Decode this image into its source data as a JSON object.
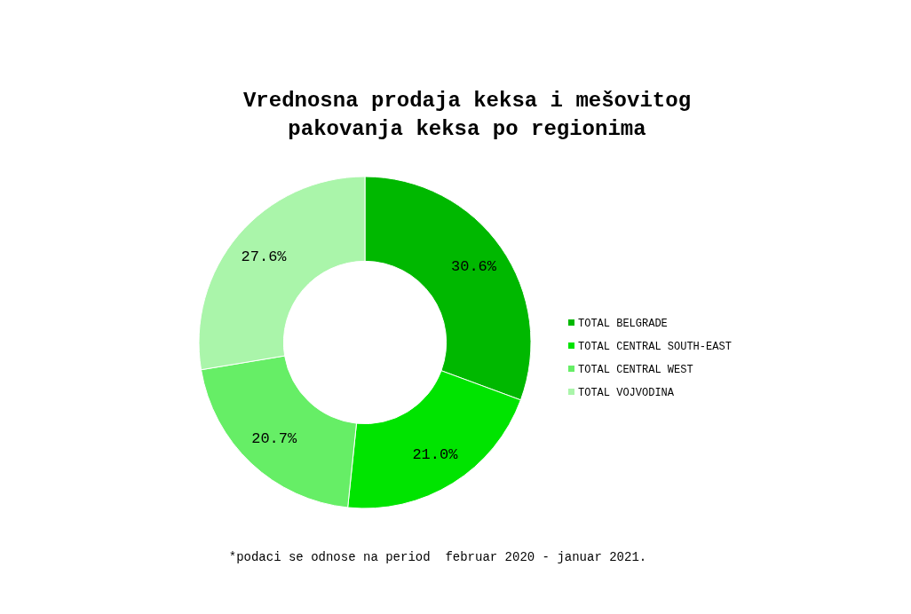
{
  "chart_data": {
    "type": "donut",
    "title": "Vrednosna prodaja keksa i mešovitog\npakovanja keksa po regionima",
    "categories": [
      "TOTAL BELGRADE",
      "TOTAL CENTRAL SOUTH-EAST",
      "TOTAL CENTRAL WEST",
      "TOTAL VOJVODINA"
    ],
    "values": [
      30.6,
      21.0,
      20.7,
      27.6
    ],
    "colors": [
      "#00b800",
      "#00e400",
      "#66ee66",
      "#aaf5aa"
    ],
    "value_labels": [
      "30.6%",
      "21.0%",
      "20.7%",
      "27.6%"
    ],
    "legend": "right",
    "annotations": [
      "*podaci se odnose na period  februar 2020 - januar 2021."
    ]
  }
}
